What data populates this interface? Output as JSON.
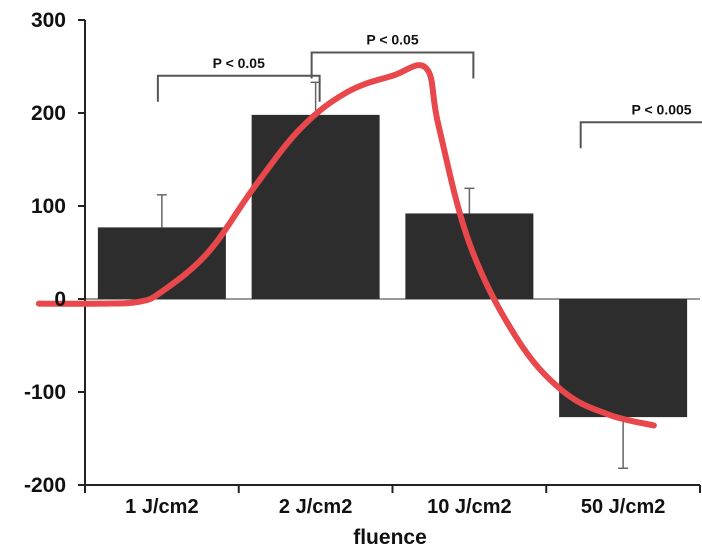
{
  "chart_data": {
    "type": "bar",
    "title": "",
    "xlabel": "fluence",
    "ylabel": "",
    "categories": [
      "1 J/cm2",
      "2 J/cm2",
      "10 J/cm2",
      "50 J/cm2"
    ],
    "values": [
      77,
      198,
      92,
      -127
    ],
    "error_bars": [
      35,
      35,
      27,
      55
    ],
    "ylim": [
      -200,
      300
    ],
    "yticks": [
      "300",
      "200",
      "100",
      "0",
      "-100",
      "-200"
    ],
    "grid": false,
    "bar_color": "#2d2d2d",
    "curve_color": "#e8474b",
    "curve": {
      "x": [
        0.2,
        0.6,
        0.85,
        1.0,
        1.3,
        1.6,
        1.9,
        2.2,
        2.5,
        2.72,
        2.8,
        3.0,
        3.3,
        3.6,
        3.9,
        4.2
      ],
      "y": [
        -5,
        -5,
        -3,
        8,
        50,
        120,
        183,
        222,
        240,
        248,
        186,
        60,
        -40,
        -98,
        -124,
        -136
      ]
    },
    "annotations": [
      {
        "text": "P < 0.05",
        "from": 0.5,
        "to": 1.5,
        "y": 240
      },
      {
        "text": "P < 0.05",
        "from": 1.5,
        "to": 2.5,
        "y": 265
      },
      {
        "text": "P < 0.005",
        "from": 3.25,
        "to": 4.25,
        "y": 190
      }
    ]
  }
}
